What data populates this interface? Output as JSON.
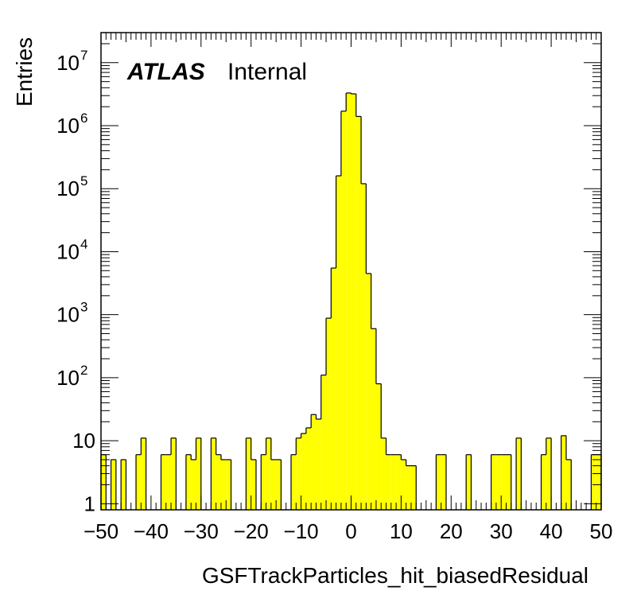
{
  "chart_data": {
    "type": "bar",
    "title": "",
    "xlabel": "GSFTrackParticles_hit_biasedResidual",
    "ylabel": "Entries",
    "xlim": [
      -50,
      50
    ],
    "ylim": [
      0.8,
      30000000
    ],
    "yscale": "log",
    "bin_width": 1,
    "fill_color": "#ffff00",
    "edge_color": "#000000",
    "grid": false,
    "x_tick_labels": [
      "−50",
      "−40",
      "−30",
      "−20",
      "−10",
      "0",
      "10",
      "20",
      "30",
      "40",
      "50"
    ],
    "x_tick_values": [
      -50,
      -40,
      -30,
      -20,
      -10,
      0,
      10,
      20,
      30,
      40,
      50
    ],
    "y_tick_labels": [
      {
        "value": 1,
        "base": "1",
        "exp": ""
      },
      {
        "value": 10,
        "base": "10",
        "exp": ""
      },
      {
        "value": 100,
        "base": "10",
        "exp": "2"
      },
      {
        "value": 1000,
        "base": "10",
        "exp": "3"
      },
      {
        "value": 10000,
        "base": "10",
        "exp": "4"
      },
      {
        "value": 100000,
        "base": "10",
        "exp": "5"
      },
      {
        "value": 1000000,
        "base": "10",
        "exp": "6"
      },
      {
        "value": 10000000,
        "base": "10",
        "exp": "7"
      }
    ],
    "bins": [
      {
        "x0": -50,
        "y": 6
      },
      {
        "x0": -48,
        "y": 5
      },
      {
        "x0": -46,
        "y": 5
      },
      {
        "x0": -43,
        "y": 6
      },
      {
        "x0": -42,
        "y": 11
      },
      {
        "x0": -38,
        "y": 6
      },
      {
        "x0": -37,
        "y": 6
      },
      {
        "x0": -36,
        "y": 11
      },
      {
        "x0": -33,
        "y": 6
      },
      {
        "x0": -32,
        "y": 5
      },
      {
        "x0": -31,
        "y": 11
      },
      {
        "x0": -28,
        "y": 11
      },
      {
        "x0": -27,
        "y": 6
      },
      {
        "x0": -26,
        "y": 5
      },
      {
        "x0": -25,
        "y": 5
      },
      {
        "x0": -21,
        "y": 11
      },
      {
        "x0": -20,
        "y": 5
      },
      {
        "x0": -18,
        "y": 6
      },
      {
        "x0": -17,
        "y": 11
      },
      {
        "x0": -16,
        "y": 5
      },
      {
        "x0": -15,
        "y": 5
      },
      {
        "x0": -12,
        "y": 6
      },
      {
        "x0": -11,
        "y": 11
      },
      {
        "x0": -10,
        "y": 13
      },
      {
        "x0": -9,
        "y": 16
      },
      {
        "x0": -8,
        "y": 26
      },
      {
        "x0": -7,
        "y": 22
      },
      {
        "x0": -6,
        "y": 110
      },
      {
        "x0": -5,
        "y": 880
      },
      {
        "x0": -4,
        "y": 5500
      },
      {
        "x0": -3,
        "y": 160000
      },
      {
        "x0": -2,
        "y": 1700000
      },
      {
        "x0": -1,
        "y": 3300000
      },
      {
        "x0": 0,
        "y": 3200000
      },
      {
        "x0": 1,
        "y": 1400000
      },
      {
        "x0": 2,
        "y": 120000
      },
      {
        "x0": 3,
        "y": 4500
      },
      {
        "x0": 4,
        "y": 600
      },
      {
        "x0": 5,
        "y": 80
      },
      {
        "x0": 6,
        "y": 11
      },
      {
        "x0": 7,
        "y": 6
      },
      {
        "x0": 8,
        "y": 6
      },
      {
        "x0": 9,
        "y": 6
      },
      {
        "x0": 10,
        "y": 5
      },
      {
        "x0": 11,
        "y": 4
      },
      {
        "x0": 12,
        "y": 4
      },
      {
        "x0": 17,
        "y": 6
      },
      {
        "x0": 18,
        "y": 6
      },
      {
        "x0": 23,
        "y": 6
      },
      {
        "x0": 28,
        "y": 6
      },
      {
        "x0": 29,
        "y": 6
      },
      {
        "x0": 30,
        "y": 6
      },
      {
        "x0": 31,
        "y": 6
      },
      {
        "x0": 33,
        "y": 11
      },
      {
        "x0": 38,
        "y": 6
      },
      {
        "x0": 39,
        "y": 11
      },
      {
        "x0": 42,
        "y": 12
      },
      {
        "x0": 43,
        "y": 5
      },
      {
        "x0": 48,
        "y": 6
      },
      {
        "x0": 49,
        "y": 6
      }
    ]
  },
  "labels": {
    "atlas": "ATLAS",
    "internal": "Internal"
  }
}
